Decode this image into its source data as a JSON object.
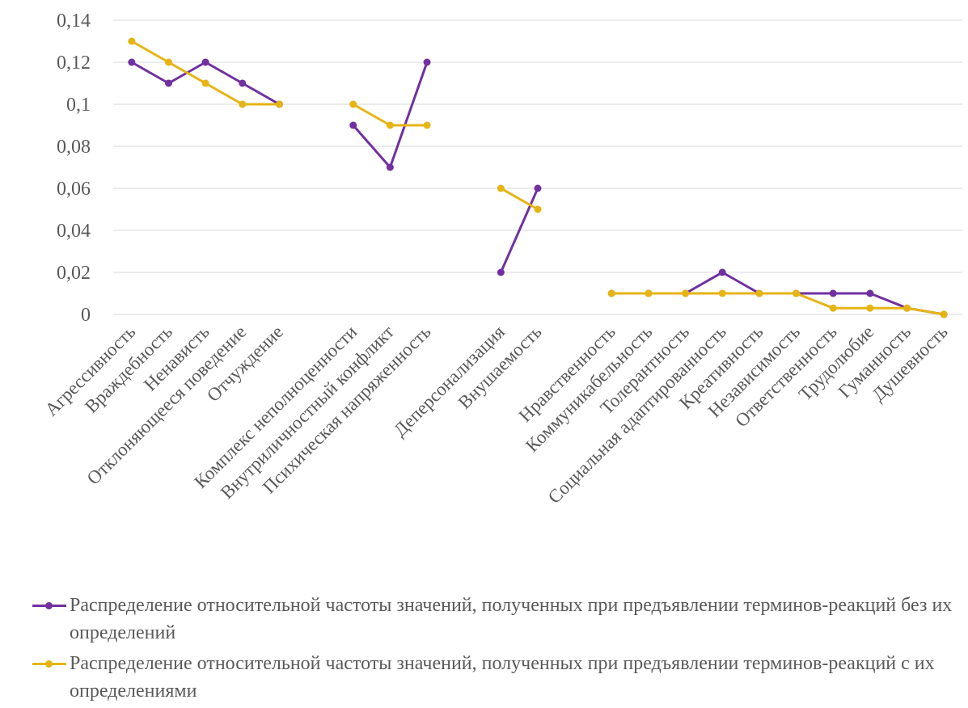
{
  "chart_data": {
    "type": "line",
    "title": "",
    "xlabel": "",
    "ylabel": "",
    "ylim": [
      0,
      0.14
    ],
    "yticks": [
      "0",
      "0,02",
      "0,04",
      "0,06",
      "0,08",
      "0,1",
      "0,12",
      "0,14"
    ],
    "grid": true,
    "legend_position": "bottom",
    "categories": [
      "Агрессивность",
      "Враждебность",
      "Ненависть",
      "Отклоняющееся поведение",
      "Отчуждение",
      "",
      "Комплекс неполноценности",
      "Внутриличностный конфликт",
      "Психическая напряженность",
      "",
      "Деперсонализация",
      "Внушаемость",
      "",
      "Нравственность",
      "Коммуникабельность",
      "Толерантность",
      "Социальная адаптированность",
      "Креативность",
      "Независимость",
      "Ответственность",
      "Трудолюбие",
      "Гуманность",
      "Душевность"
    ],
    "series": [
      {
        "name": "Распределение относительной частоты значений, полученных при предъявлении терминов-реакций без их определений",
        "color": "#7030a0",
        "values": [
          0.12,
          0.11,
          0.12,
          0.11,
          0.1,
          null,
          0.09,
          0.07,
          0.12,
          null,
          0.02,
          0.06,
          null,
          0.01,
          0.01,
          0.01,
          0.02,
          0.01,
          0.01,
          0.01,
          0.01,
          0.003,
          0
        ]
      },
      {
        "name": "Распределение относительной частоты значений, полученных при предъявлении терминов-реакций с их определениями",
        "color": "#e6b413",
        "values": [
          0.13,
          0.12,
          0.11,
          0.1,
          0.1,
          null,
          0.1,
          0.09,
          0.09,
          null,
          0.06,
          0.05,
          null,
          0.01,
          0.01,
          0.01,
          0.01,
          0.01,
          0.01,
          0.003,
          0.003,
          0.003,
          0
        ]
      }
    ]
  }
}
